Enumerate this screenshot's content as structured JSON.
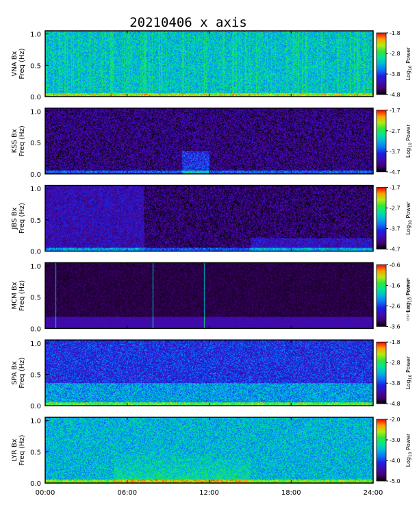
{
  "chart_data": {
    "type": "heatmap",
    "title": "20210406 x axis",
    "xaxis": {
      "label": "",
      "range_hours": [
        0,
        24
      ],
      "ticks": [
        {
          "hour": 0,
          "label": "00:00"
        },
        {
          "hour": 6,
          "label": "06:00"
        },
        {
          "hour": 12,
          "label": "12:00"
        },
        {
          "hour": 18,
          "label": "18:00"
        },
        {
          "hour": 24,
          "label": "24:00"
        }
      ]
    },
    "yaxis": {
      "label": "Freq (Hz)",
      "range": [
        0,
        1.05
      ],
      "ticks": [
        {
          "value": 0.0,
          "label": "0.0"
        },
        {
          "value": 0.5,
          "label": "0.5"
        },
        {
          "value": 1.0,
          "label": "1.0"
        }
      ]
    },
    "colorbar_label_parts": {
      "main": "Log",
      "sub": "10",
      "rest": " Power"
    },
    "side_stamp": "ssh Mon Aug 16 16:06:46 2021",
    "panels": [
      {
        "station": "VNA Bx",
        "cbar_ticks": [
          "-1.8",
          "-2.8",
          "-3.8",
          "-4.8"
        ],
        "cmin": -4.8,
        "cmax": -1.8,
        "level": 0.52,
        "style": "bright"
      },
      {
        "station": "KSS Bx",
        "cbar_ticks": [
          "-1.7",
          "-2.7",
          "-3.7",
          "-4.7"
        ],
        "cmin": -4.7,
        "cmax": -1.7,
        "level": 0.12,
        "style": "dark_features"
      },
      {
        "station": "JBS Bx",
        "cbar_ticks": [
          "-1.7",
          "-2.7",
          "-3.7",
          "-4.7"
        ],
        "cmin": -4.7,
        "cmax": -1.7,
        "level": 0.2,
        "style": "split"
      },
      {
        "station": "MCM Bx",
        "cbar_ticks": [
          "-0.6",
          "-1.6",
          "-2.6",
          "-3.6"
        ],
        "cmin": -3.6,
        "cmax": -0.6,
        "level": 0.02,
        "style": "black_lines"
      },
      {
        "station": "SPA Bx",
        "cbar_ticks": [
          "-1.8",
          "-2.8",
          "-3.8",
          "-4.8"
        ],
        "cmin": -4.8,
        "cmax": -1.8,
        "level": 0.3,
        "style": "banded"
      },
      {
        "station": "LYR Bx",
        "cbar_ticks": [
          "-2.0",
          "-3.0",
          "-4.0",
          "-5.0"
        ],
        "cmin": -5.0,
        "cmax": -2.0,
        "level": 0.5,
        "style": "bright_hump"
      }
    ]
  }
}
